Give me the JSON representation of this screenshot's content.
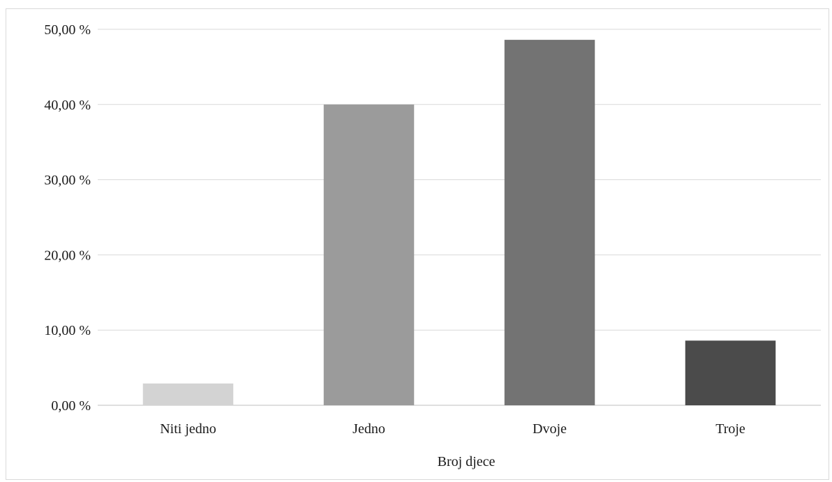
{
  "chart_data": {
    "type": "bar",
    "title": "",
    "xlabel": "Broj djece",
    "ylabel": "",
    "categories": [
      "Niti jedno",
      "Jedno",
      "Dvoje",
      "Troje"
    ],
    "values": [
      2.9,
      40.0,
      48.6,
      8.6
    ],
    "colors": [
      "#d3d3d3",
      "#9b9b9b",
      "#737373",
      "#4b4b4b"
    ],
    "ylim": [
      0,
      50
    ],
    "y_ticks": [
      0,
      10,
      20,
      30,
      40,
      50
    ],
    "y_tick_labels": [
      "0,00 %",
      "10,00 %",
      "20,00 %",
      "30,00 %",
      "40,00 %",
      "50,00 %"
    ],
    "grid": true,
    "legend": "none"
  }
}
